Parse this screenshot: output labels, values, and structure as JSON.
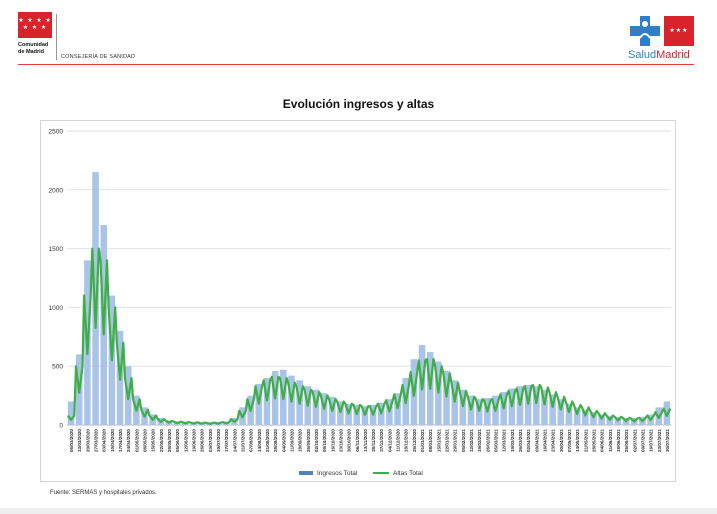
{
  "header": {
    "org_name_line1": "Comunidad",
    "org_name_line2": "de Madrid",
    "department": "CONSEJERÍA DE SANIDAD",
    "brand_part1": "Salud",
    "brand_part2": "Madrid",
    "flag_stars": "★ ★ ★ ★\n★ ★ ★"
  },
  "footer": {
    "source": "Fuente: SERMAS y hospitales privados."
  },
  "colors": {
    "ingresos": "#a9c4e6",
    "altas": "#3fae49",
    "brand_red": "#d8232a",
    "brand_blue": "#2f7fc8"
  },
  "chart_data": {
    "type": "bar",
    "title": "Evolución ingresos y altas",
    "xlabel": "",
    "ylabel": "",
    "ylim": [
      0,
      2500
    ],
    "yticks": [
      0,
      500,
      1000,
      1500,
      2000,
      2500
    ],
    "grid": true,
    "legend_position": "bottom",
    "x_tick_labels": [
      "06/03/2020",
      "13/03/2020",
      "20/03/2020",
      "27/03/2020",
      "03/04/2020",
      "10/04/2020",
      "17/04/2020",
      "24/04/2020",
      "01/05/2020",
      "08/05/2020",
      "15/05/2020",
      "22/05/2020",
      "29/05/2020",
      "05/06/2020",
      "12/06/2020",
      "19/06/2020",
      "26/06/2020",
      "03/07/2020",
      "10/07/2020",
      "17/07/2020",
      "24/07/2020",
      "31/07/2020",
      "07/08/2020",
      "14/08/2020",
      "21/08/2020",
      "28/08/2020",
      "04/09/2020",
      "11/09/2020",
      "18/09/2020",
      "25/09/2020",
      "02/10/2020",
      "09/10/2020",
      "16/10/2020",
      "23/10/2020",
      "30/10/2020",
      "06/11/2020",
      "13/11/2020",
      "20/11/2020",
      "27/11/2020",
      "04/12/2020",
      "11/12/2020",
      "18/12/2020",
      "25/12/2020",
      "01/01/2021",
      "08/01/2021",
      "15/01/2021",
      "22/01/2021",
      "29/01/2021",
      "05/02/2021",
      "12/02/2021",
      "19/02/2021",
      "26/02/2021",
      "05/03/2021",
      "12/03/2021",
      "19/03/2021",
      "26/03/2021",
      "02/04/2021",
      "09/04/2021",
      "16/04/2021",
      "23/04/2021",
      "30/04/2021",
      "07/05/2021",
      "14/05/2021",
      "21/05/2021",
      "28/05/2021",
      "04/06/2021",
      "11/06/2021",
      "18/06/2021",
      "25/06/2021",
      "02/07/2021",
      "09/07/2021",
      "16/07/2021",
      "23/07/2021",
      "30/07/2021"
    ],
    "series": [
      {
        "name": "Ingresos Total",
        "style": "bar",
        "values": [
          200,
          600,
          1400,
          2150,
          1700,
          1100,
          800,
          500,
          250,
          150,
          90,
          60,
          40,
          30,
          30,
          25,
          20,
          20,
          25,
          30,
          60,
          150,
          250,
          350,
          400,
          460,
          470,
          420,
          380,
          330,
          300,
          270,
          240,
          200,
          180,
          170,
          160,
          170,
          190,
          220,
          270,
          400,
          560,
          680,
          620,
          540,
          460,
          380,
          300,
          250,
          220,
          230,
          250,
          280,
          310,
          330,
          340,
          330,
          300,
          260,
          220,
          180,
          150,
          130,
          110,
          90,
          80,
          70,
          60,
          60,
          70,
          90,
          150,
          200
        ]
      },
      {
        "name": "Altas Total",
        "style": "line",
        "values": [
          80,
          500,
          1100,
          1500,
          1400,
          1000,
          700,
          400,
          220,
          130,
          80,
          50,
          35,
          28,
          25,
          22,
          20,
          18,
          20,
          25,
          50,
          120,
          220,
          330,
          380,
          410,
          400,
          360,
          330,
          300,
          280,
          250,
          220,
          200,
          180,
          170,
          160,
          160,
          180,
          210,
          260,
          340,
          450,
          550,
          560,
          500,
          440,
          360,
          290,
          240,
          220,
          210,
          220,
          260,
          290,
          310,
          330,
          340,
          320,
          280,
          240,
          200,
          170,
          150,
          120,
          100,
          80,
          70,
          60,
          55,
          60,
          80,
          110,
          140
        ]
      }
    ]
  }
}
